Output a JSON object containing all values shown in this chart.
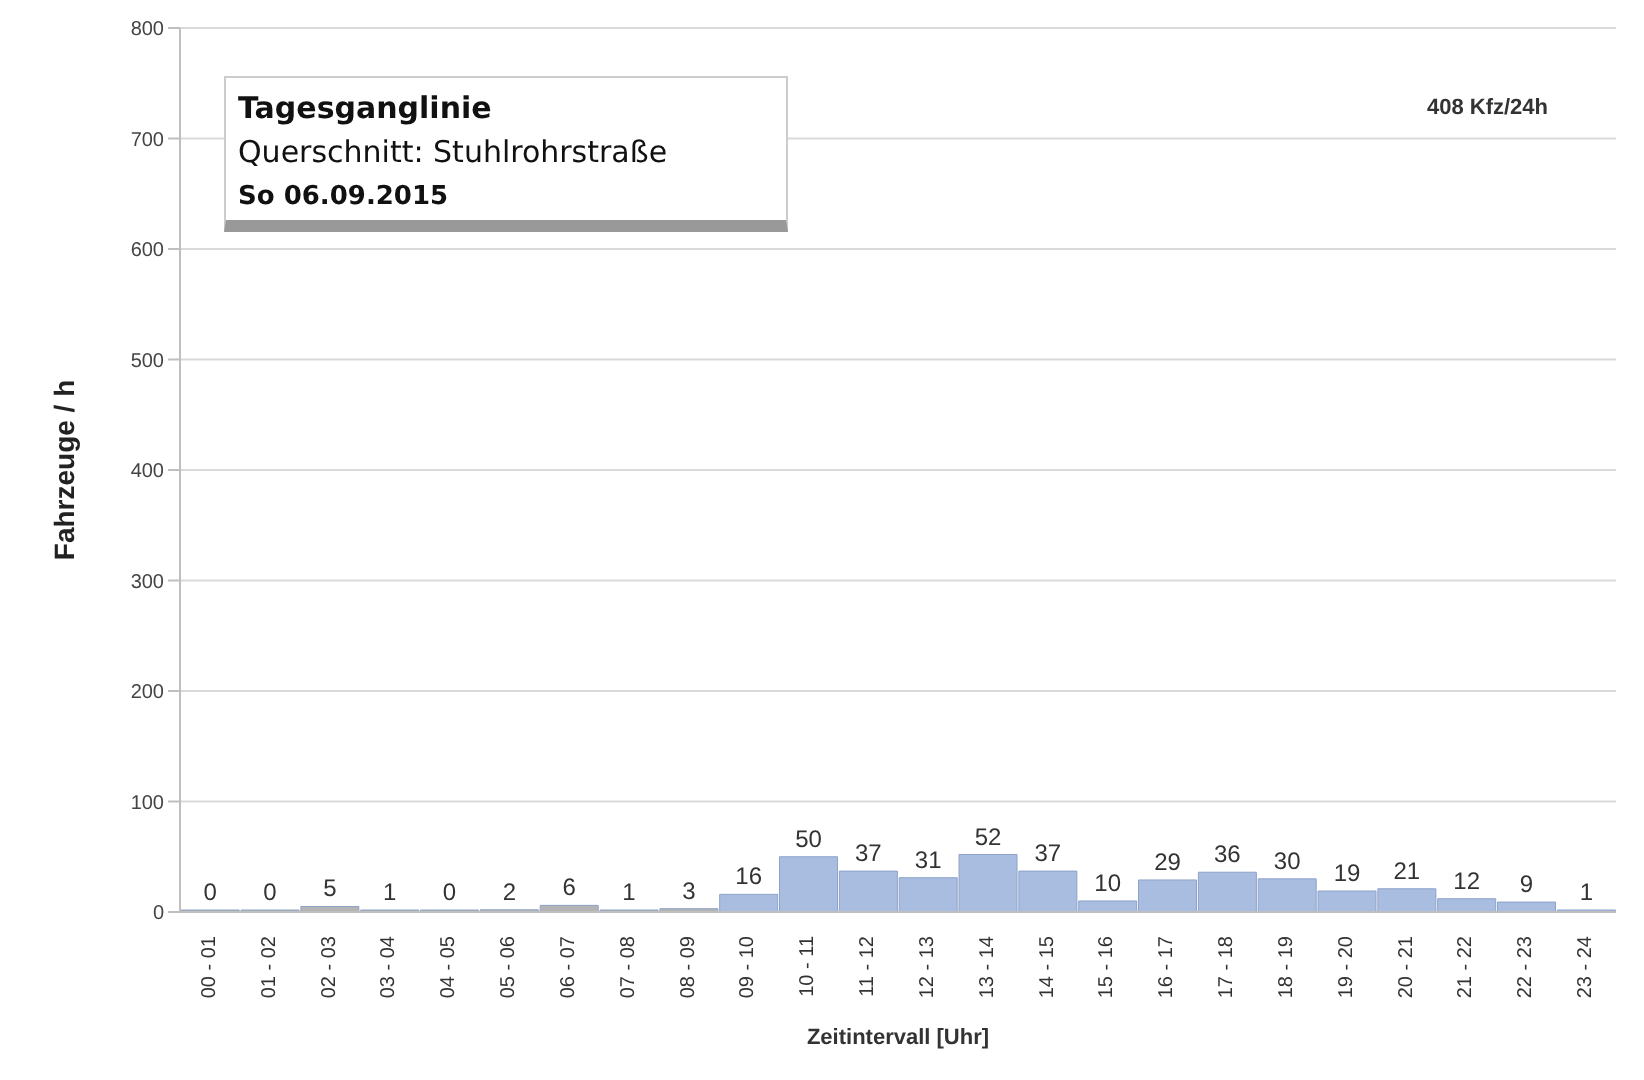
{
  "chart_data": {
    "type": "bar",
    "title": "Tagesganglinie",
    "subtitle": "Querschnitt: Stuhlrohrstraße",
    "annotations": [
      "So 06.09.2015",
      "408 Kfz/24h"
    ],
    "xlabel": "Zeitintervall [Uhr]",
    "ylabel": "Fahrzeuge / h",
    "categories": [
      "00 - 01",
      "01 - 02",
      "02 - 03",
      "03 - 04",
      "04 - 05",
      "05 - 06",
      "06 - 07",
      "07 - 08",
      "08 - 09",
      "09 - 10",
      "10 - 11",
      "11 - 12",
      "12 - 13",
      "13 - 14",
      "14 - 15",
      "15 - 16",
      "16 - 17",
      "17 - 18",
      "18 - 19",
      "19 - 20",
      "20 - 21",
      "21 - 22",
      "22 - 23",
      "23 - 24"
    ],
    "values": [
      0,
      0,
      5,
      1,
      0,
      2,
      6,
      1,
      3,
      16,
      50,
      37,
      31,
      52,
      37,
      10,
      29,
      36,
      30,
      19,
      21,
      12,
      9,
      1
    ],
    "colors": [
      "#b4b4b4",
      "#b4b4b4",
      "#b4b4b4",
      "#b4b4b4",
      "#b4b4b4",
      "#b4b4b4",
      "#b4b4b4",
      "#b4b4b4",
      "#b4b4b4",
      "#a9bde0",
      "#a9bde0",
      "#a9bde0",
      "#a9bde0",
      "#a9bde0",
      "#a9bde0",
      "#a9bde0",
      "#a9bde0",
      "#a9bde0",
      "#a9bde0",
      "#a9bde0",
      "#a9bde0",
      "#a9bde0",
      "#a9bde0",
      "#a9bde0"
    ],
    "ylim": [
      0,
      800
    ],
    "yticks": [
      0,
      100,
      200,
      300,
      400,
      500,
      600,
      700,
      800
    ],
    "grid": "y",
    "data_labels": true
  }
}
